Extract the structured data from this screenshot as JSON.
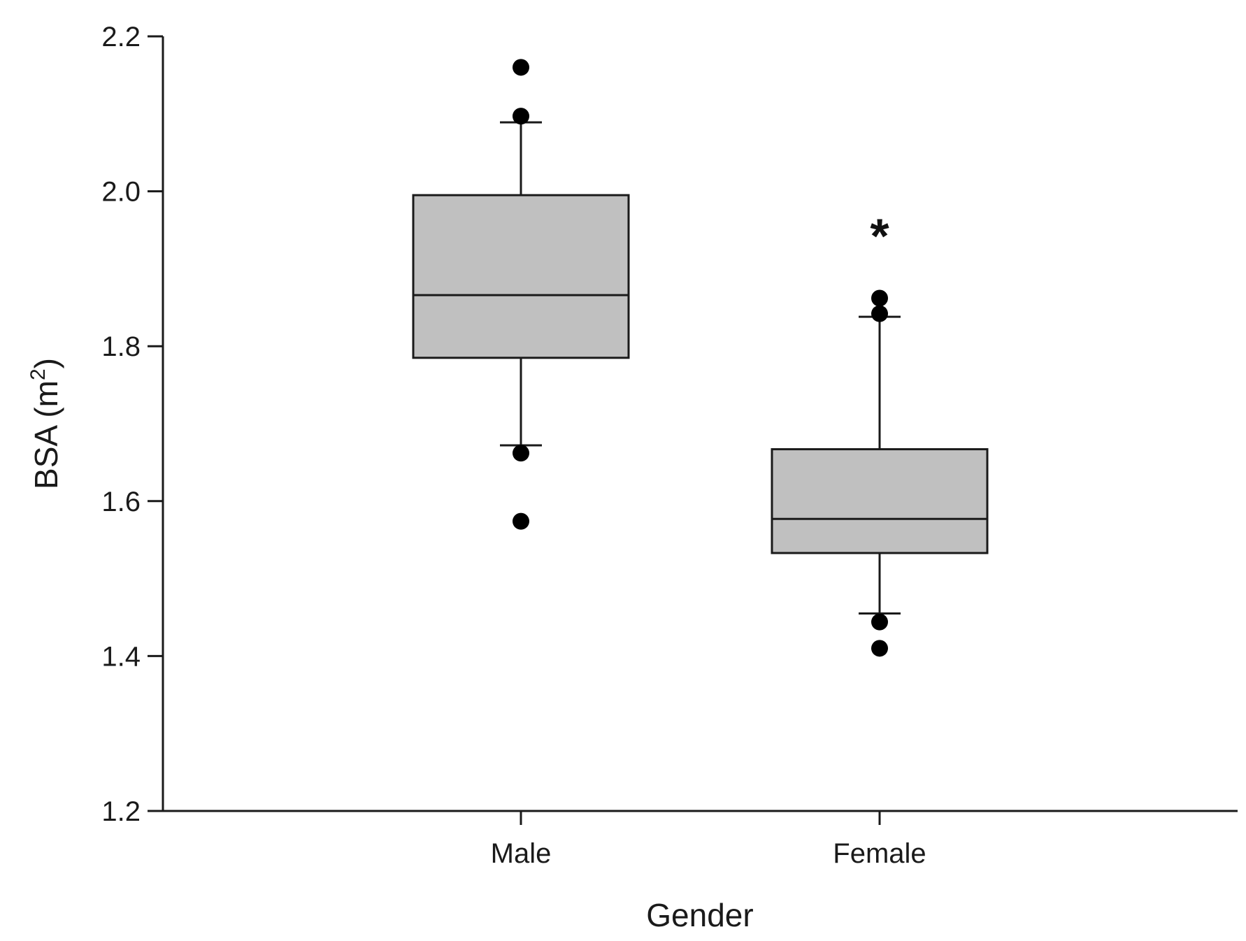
{
  "chart_data": {
    "type": "box",
    "xlabel": "Gender",
    "ylabel": "BSA (m",
    "ylabel_superscript": "2",
    "ylabel_close": ")",
    "ylim": [
      1.2,
      2.2
    ],
    "yticks": [
      "1.2",
      "1.4",
      "1.6",
      "1.8",
      "2.0",
      "2.2"
    ],
    "grid": false,
    "legend": "none",
    "categories": [
      "Male",
      "Female"
    ],
    "series": [
      {
        "category": "Male",
        "whisker_low": 1.672,
        "q1": 1.785,
        "median": 1.866,
        "q3": 1.995,
        "whisker_high": 2.089,
        "outliers": [
          2.16,
          2.097,
          1.662,
          1.574
        ]
      },
      {
        "category": "Female",
        "whisker_low": 1.455,
        "q1": 1.533,
        "median": 1.577,
        "q3": 1.667,
        "whisker_high": 1.838,
        "outliers": [
          1.862,
          1.842,
          1.444,
          1.41
        ]
      }
    ],
    "annotations": [
      {
        "category": "Female",
        "text": "*",
        "y": 1.955
      }
    ],
    "colors": {
      "box_fill": "#c0c0c0",
      "line": "#1a1a1a",
      "marker": "#000000"
    }
  }
}
